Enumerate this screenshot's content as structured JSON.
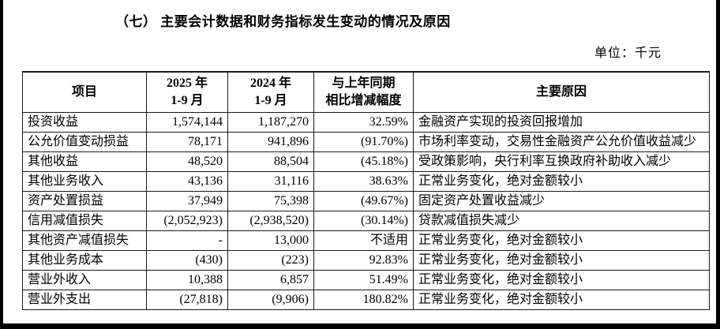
{
  "page": {
    "title": "（七） 主要会计数据和财务指标发生变动的情况及原因",
    "unit_label": "单位：千元"
  },
  "colors": {
    "text": "#000000",
    "border": "#1a1a1a",
    "background": "#ffffff",
    "frame": "#000000"
  },
  "table": {
    "headers": {
      "item": "项目",
      "period_2025": "2025 年\n1-9 月",
      "period_2024": "2024 年\n1-9 月",
      "change": "与上年同期\n相比增减幅度",
      "reason": "主要原因"
    },
    "rows": [
      {
        "item": "投资收益",
        "v2025": "1,574,144",
        "v2024": "1,187,270",
        "change": "32.59%",
        "reason": "金融资产实现的投资回报增加"
      },
      {
        "item": "公允价值变动损益",
        "v2025": "78,171",
        "v2024": "941,896",
        "change": "(91.70%)",
        "reason": "市场利率变动，交易性金融资产公允价值收益减少"
      },
      {
        "item": "其他收益",
        "v2025": "48,520",
        "v2024": "88,504",
        "change": "(45.18%)",
        "reason": "受政策影响，央行利率互换政府补助收入减少"
      },
      {
        "item": "其他业务收入",
        "v2025": "43,136",
        "v2024": "31,116",
        "change": "38.63%",
        "reason": "正常业务变化，绝对金额较小"
      },
      {
        "item": "资产处置损益",
        "v2025": "37,949",
        "v2024": "75,398",
        "change": "(49.67%)",
        "reason": "固定资产处置收益减少"
      },
      {
        "item": "信用减值损失",
        "v2025": "(2,052,923)",
        "v2024": "(2,938,520)",
        "change": "(30.14%)",
        "reason": "贷款减值损失减少"
      },
      {
        "item": "其他资产减值损失",
        "v2025": "-",
        "v2024": "13,000",
        "change": "不适用",
        "reason": "正常业务变化，绝对金额较小"
      },
      {
        "item": "其他业务成本",
        "v2025": "(430)",
        "v2024": "(223)",
        "change": "92.83%",
        "reason": "正常业务变化，绝对金额较小"
      },
      {
        "item": "营业外收入",
        "v2025": "10,388",
        "v2024": "6,857",
        "change": "51.49%",
        "reason": "正常业务变化，绝对金额较小"
      },
      {
        "item": "营业外支出",
        "v2025": "(27,818)",
        "v2024": "(9,906)",
        "change": "180.82%",
        "reason": "正常业务变化，绝对金额较小"
      }
    ]
  }
}
